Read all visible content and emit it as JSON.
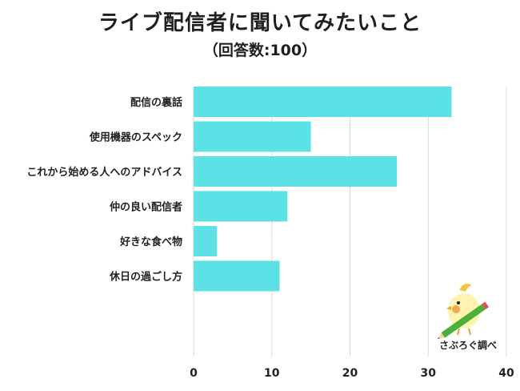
{
  "header": {
    "title": "ライブ配信者に聞いてみたいこと",
    "subtitle": "（回答数:100）"
  },
  "badge": {
    "label": "さぶろぐ調べ",
    "icon": "bird-with-pencil-icon"
  },
  "colors": {
    "bar": "#5CE1E6",
    "grid": "#d9d9d9",
    "axis": "#cccccc"
  },
  "chart_data": {
    "type": "bar",
    "orientation": "horizontal",
    "title": "ライブ配信者に聞いてみたいこと",
    "subtitle": "（回答数:100）",
    "categories": [
      "配信の裏話",
      "使用機器のスペック",
      "これから始める人へのアドバイス",
      "仲の良い配信者",
      "好きな食べ物",
      "休日の過ごし方"
    ],
    "values": [
      33,
      15,
      26,
      12,
      3,
      11
    ],
    "xlim": [
      0,
      40
    ],
    "xticks": [
      0,
      10,
      20,
      30,
      40
    ],
    "xlabel": "",
    "ylabel": "",
    "grid": true
  }
}
